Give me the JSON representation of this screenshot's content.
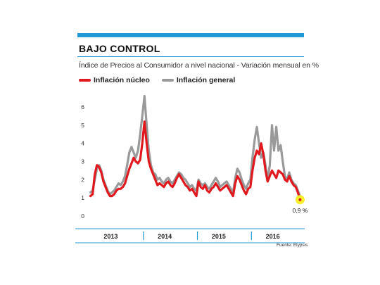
{
  "header": {
    "title": "BAJO CONTROL",
    "subtitle": "Índice de Precios al Consumidor a nivel nacional - Variación mensual en %"
  },
  "legend": {
    "items": [
      {
        "label": "Inflación núcleo",
        "color": "#e0191f"
      },
      {
        "label": "Inflación general",
        "color": "#9a9a9a"
      }
    ]
  },
  "source": "Fuente: Elypsis",
  "colors": {
    "accent": "#1e9ad6",
    "nucleo": "#e0191f",
    "general": "#9a9a9a",
    "highlight": "#f7ef2a"
  },
  "chart_data": {
    "type": "line",
    "title": "BAJO CONTROL",
    "subtitle": "Índice de Precios al Consumidor a nivel nacional - Variación mensual en %",
    "ylabel": "",
    "ylim": [
      0,
      6
    ],
    "yticks": [
      "0",
      "1",
      "2",
      "3",
      "4",
      "5",
      "6"
    ],
    "xlim": [
      2013.0,
      2016.96
    ],
    "year_labels": [
      "2013",
      "2014",
      "2015",
      "2016"
    ],
    "annotation": {
      "text": "0,9 %",
      "x": 2016.9,
      "y": 0.9
    },
    "series": [
      {
        "name": "Inflación núcleo",
        "color": "#e0191f",
        "points": [
          [
            2013.02,
            1.1
          ],
          [
            2013.06,
            1.2
          ],
          [
            2013.1,
            2.3
          ],
          [
            2013.14,
            2.8
          ],
          [
            2013.18,
            2.7
          ],
          [
            2013.22,
            2.4
          ],
          [
            2013.26,
            1.9
          ],
          [
            2013.3,
            1.6
          ],
          [
            2013.34,
            1.3
          ],
          [
            2013.38,
            1.1
          ],
          [
            2013.42,
            1.1
          ],
          [
            2013.46,
            1.2
          ],
          [
            2013.5,
            1.4
          ],
          [
            2013.54,
            1.5
          ],
          [
            2013.58,
            1.5
          ],
          [
            2013.62,
            1.6
          ],
          [
            2013.66,
            1.8
          ],
          [
            2013.7,
            2.2
          ],
          [
            2013.74,
            2.6
          ],
          [
            2013.78,
            2.9
          ],
          [
            2013.82,
            3.2
          ],
          [
            2013.86,
            3.0
          ],
          [
            2013.9,
            2.9
          ],
          [
            2013.94,
            3.1
          ],
          [
            2013.98,
            4.0
          ],
          [
            2014.02,
            5.2
          ],
          [
            2014.06,
            4.0
          ],
          [
            2014.1,
            3.0
          ],
          [
            2014.14,
            2.6
          ],
          [
            2014.18,
            2.3
          ],
          [
            2014.22,
            2.0
          ],
          [
            2014.26,
            1.7
          ],
          [
            2014.3,
            1.8
          ],
          [
            2014.34,
            1.7
          ],
          [
            2014.38,
            1.6
          ],
          [
            2014.42,
            1.8
          ],
          [
            2014.46,
            1.9
          ],
          [
            2014.5,
            1.7
          ],
          [
            2014.54,
            1.6
          ],
          [
            2014.58,
            1.8
          ],
          [
            2014.62,
            2.1
          ],
          [
            2014.66,
            2.3
          ],
          [
            2014.7,
            2.1
          ],
          [
            2014.74,
            1.9
          ],
          [
            2014.78,
            1.7
          ],
          [
            2014.82,
            1.6
          ],
          [
            2014.86,
            1.4
          ],
          [
            2014.9,
            1.5
          ],
          [
            2014.94,
            1.3
          ],
          [
            2014.98,
            1.1
          ],
          [
            2015.02,
            1.9
          ],
          [
            2015.06,
            1.6
          ],
          [
            2015.1,
            1.5
          ],
          [
            2015.14,
            1.7
          ],
          [
            2015.18,
            1.4
          ],
          [
            2015.22,
            1.3
          ],
          [
            2015.26,
            1.5
          ],
          [
            2015.3,
            1.6
          ],
          [
            2015.34,
            1.8
          ],
          [
            2015.38,
            1.6
          ],
          [
            2015.42,
            1.4
          ],
          [
            2015.46,
            1.5
          ],
          [
            2015.5,
            1.6
          ],
          [
            2015.54,
            1.7
          ],
          [
            2015.58,
            1.5
          ],
          [
            2015.62,
            1.3
          ],
          [
            2015.66,
            1.1
          ],
          [
            2015.7,
            1.8
          ],
          [
            2015.74,
            2.2
          ],
          [
            2015.78,
            2.0
          ],
          [
            2015.82,
            1.7
          ],
          [
            2015.86,
            1.4
          ],
          [
            2015.9,
            1.2
          ],
          [
            2015.94,
            1.5
          ],
          [
            2015.98,
            1.6
          ],
          [
            2016.02,
            2.5
          ],
          [
            2016.06,
            3.2
          ],
          [
            2016.1,
            3.6
          ],
          [
            2016.14,
            3.4
          ],
          [
            2016.18,
            4.0
          ],
          [
            2016.22,
            3.4
          ],
          [
            2016.26,
            2.5
          ],
          [
            2016.3,
            1.9
          ],
          [
            2016.34,
            2.2
          ],
          [
            2016.38,
            2.5
          ],
          [
            2016.42,
            2.3
          ],
          [
            2016.46,
            2.1
          ],
          [
            2016.5,
            2.5
          ],
          [
            2016.54,
            2.4
          ],
          [
            2016.58,
            2.3
          ],
          [
            2016.62,
            2.0
          ],
          [
            2016.66,
            1.9
          ],
          [
            2016.7,
            2.2
          ],
          [
            2016.74,
            1.9
          ],
          [
            2016.78,
            1.7
          ],
          [
            2016.82,
            1.6
          ],
          [
            2016.86,
            1.3
          ],
          [
            2016.9,
            0.9
          ]
        ]
      },
      {
        "name": "Inflación general",
        "color": "#9a9a9a",
        "points": [
          [
            2013.02,
            1.3
          ],
          [
            2013.06,
            1.4
          ],
          [
            2013.1,
            2.0
          ],
          [
            2013.14,
            2.6
          ],
          [
            2013.18,
            2.8
          ],
          [
            2013.22,
            2.5
          ],
          [
            2013.26,
            2.0
          ],
          [
            2013.3,
            1.7
          ],
          [
            2013.34,
            1.4
          ],
          [
            2013.38,
            1.2
          ],
          [
            2013.42,
            1.3
          ],
          [
            2013.46,
            1.4
          ],
          [
            2013.5,
            1.6
          ],
          [
            2013.54,
            1.8
          ],
          [
            2013.58,
            1.7
          ],
          [
            2013.62,
            1.9
          ],
          [
            2013.66,
            2.2
          ],
          [
            2013.7,
            2.8
          ],
          [
            2013.74,
            3.5
          ],
          [
            2013.78,
            3.8
          ],
          [
            2013.82,
            3.5
          ],
          [
            2013.86,
            3.2
          ],
          [
            2013.9,
            3.6
          ],
          [
            2013.94,
            4.5
          ],
          [
            2013.98,
            5.5
          ],
          [
            2014.02,
            6.6
          ],
          [
            2014.06,
            5.0
          ],
          [
            2014.1,
            3.6
          ],
          [
            2014.14,
            2.8
          ],
          [
            2014.18,
            2.4
          ],
          [
            2014.22,
            2.3
          ],
          [
            2014.26,
            2.0
          ],
          [
            2014.3,
            2.1
          ],
          [
            2014.34,
            1.9
          ],
          [
            2014.38,
            1.8
          ],
          [
            2014.42,
            2.0
          ],
          [
            2014.46,
            2.1
          ],
          [
            2014.5,
            1.9
          ],
          [
            2014.54,
            1.8
          ],
          [
            2014.58,
            2.0
          ],
          [
            2014.62,
            2.2
          ],
          [
            2014.66,
            2.4
          ],
          [
            2014.7,
            2.3
          ],
          [
            2014.74,
            2.1
          ],
          [
            2014.78,
            2.0
          ],
          [
            2014.82,
            1.8
          ],
          [
            2014.86,
            1.6
          ],
          [
            2014.9,
            1.7
          ],
          [
            2014.94,
            1.5
          ],
          [
            2014.98,
            1.4
          ],
          [
            2015.02,
            2.0
          ],
          [
            2015.06,
            1.8
          ],
          [
            2015.1,
            1.7
          ],
          [
            2015.14,
            1.8
          ],
          [
            2015.18,
            1.6
          ],
          [
            2015.22,
            1.5
          ],
          [
            2015.26,
            1.7
          ],
          [
            2015.3,
            1.9
          ],
          [
            2015.34,
            2.1
          ],
          [
            2015.38,
            1.9
          ],
          [
            2015.42,
            1.6
          ],
          [
            2015.46,
            1.7
          ],
          [
            2015.5,
            1.8
          ],
          [
            2015.54,
            1.9
          ],
          [
            2015.58,
            1.7
          ],
          [
            2015.62,
            1.5
          ],
          [
            2015.66,
            1.3
          ],
          [
            2015.7,
            2.1
          ],
          [
            2015.74,
            2.6
          ],
          [
            2015.78,
            2.4
          ],
          [
            2015.82,
            2.0
          ],
          [
            2015.86,
            1.7
          ],
          [
            2015.9,
            1.5
          ],
          [
            2015.94,
            1.8
          ],
          [
            2015.98,
            2.0
          ],
          [
            2016.02,
            3.2
          ],
          [
            2016.06,
            4.2
          ],
          [
            2016.1,
            4.9
          ],
          [
            2016.14,
            4.0
          ],
          [
            2016.18,
            3.2
          ],
          [
            2016.22,
            3.5
          ],
          [
            2016.26,
            2.8
          ],
          [
            2016.3,
            2.0
          ],
          [
            2016.34,
            2.8
          ],
          [
            2016.38,
            5.0
          ],
          [
            2016.42,
            3.6
          ],
          [
            2016.46,
            4.9
          ],
          [
            2016.5,
            3.6
          ],
          [
            2016.54,
            3.9
          ],
          [
            2016.58,
            3.0
          ],
          [
            2016.62,
            2.2
          ],
          [
            2016.66,
            2.0
          ],
          [
            2016.7,
            2.4
          ],
          [
            2016.74,
            2.0
          ],
          [
            2016.78,
            1.8
          ],
          [
            2016.82,
            1.7
          ],
          [
            2016.86,
            1.4
          ],
          [
            2016.9,
            1.1
          ]
        ]
      }
    ]
  }
}
